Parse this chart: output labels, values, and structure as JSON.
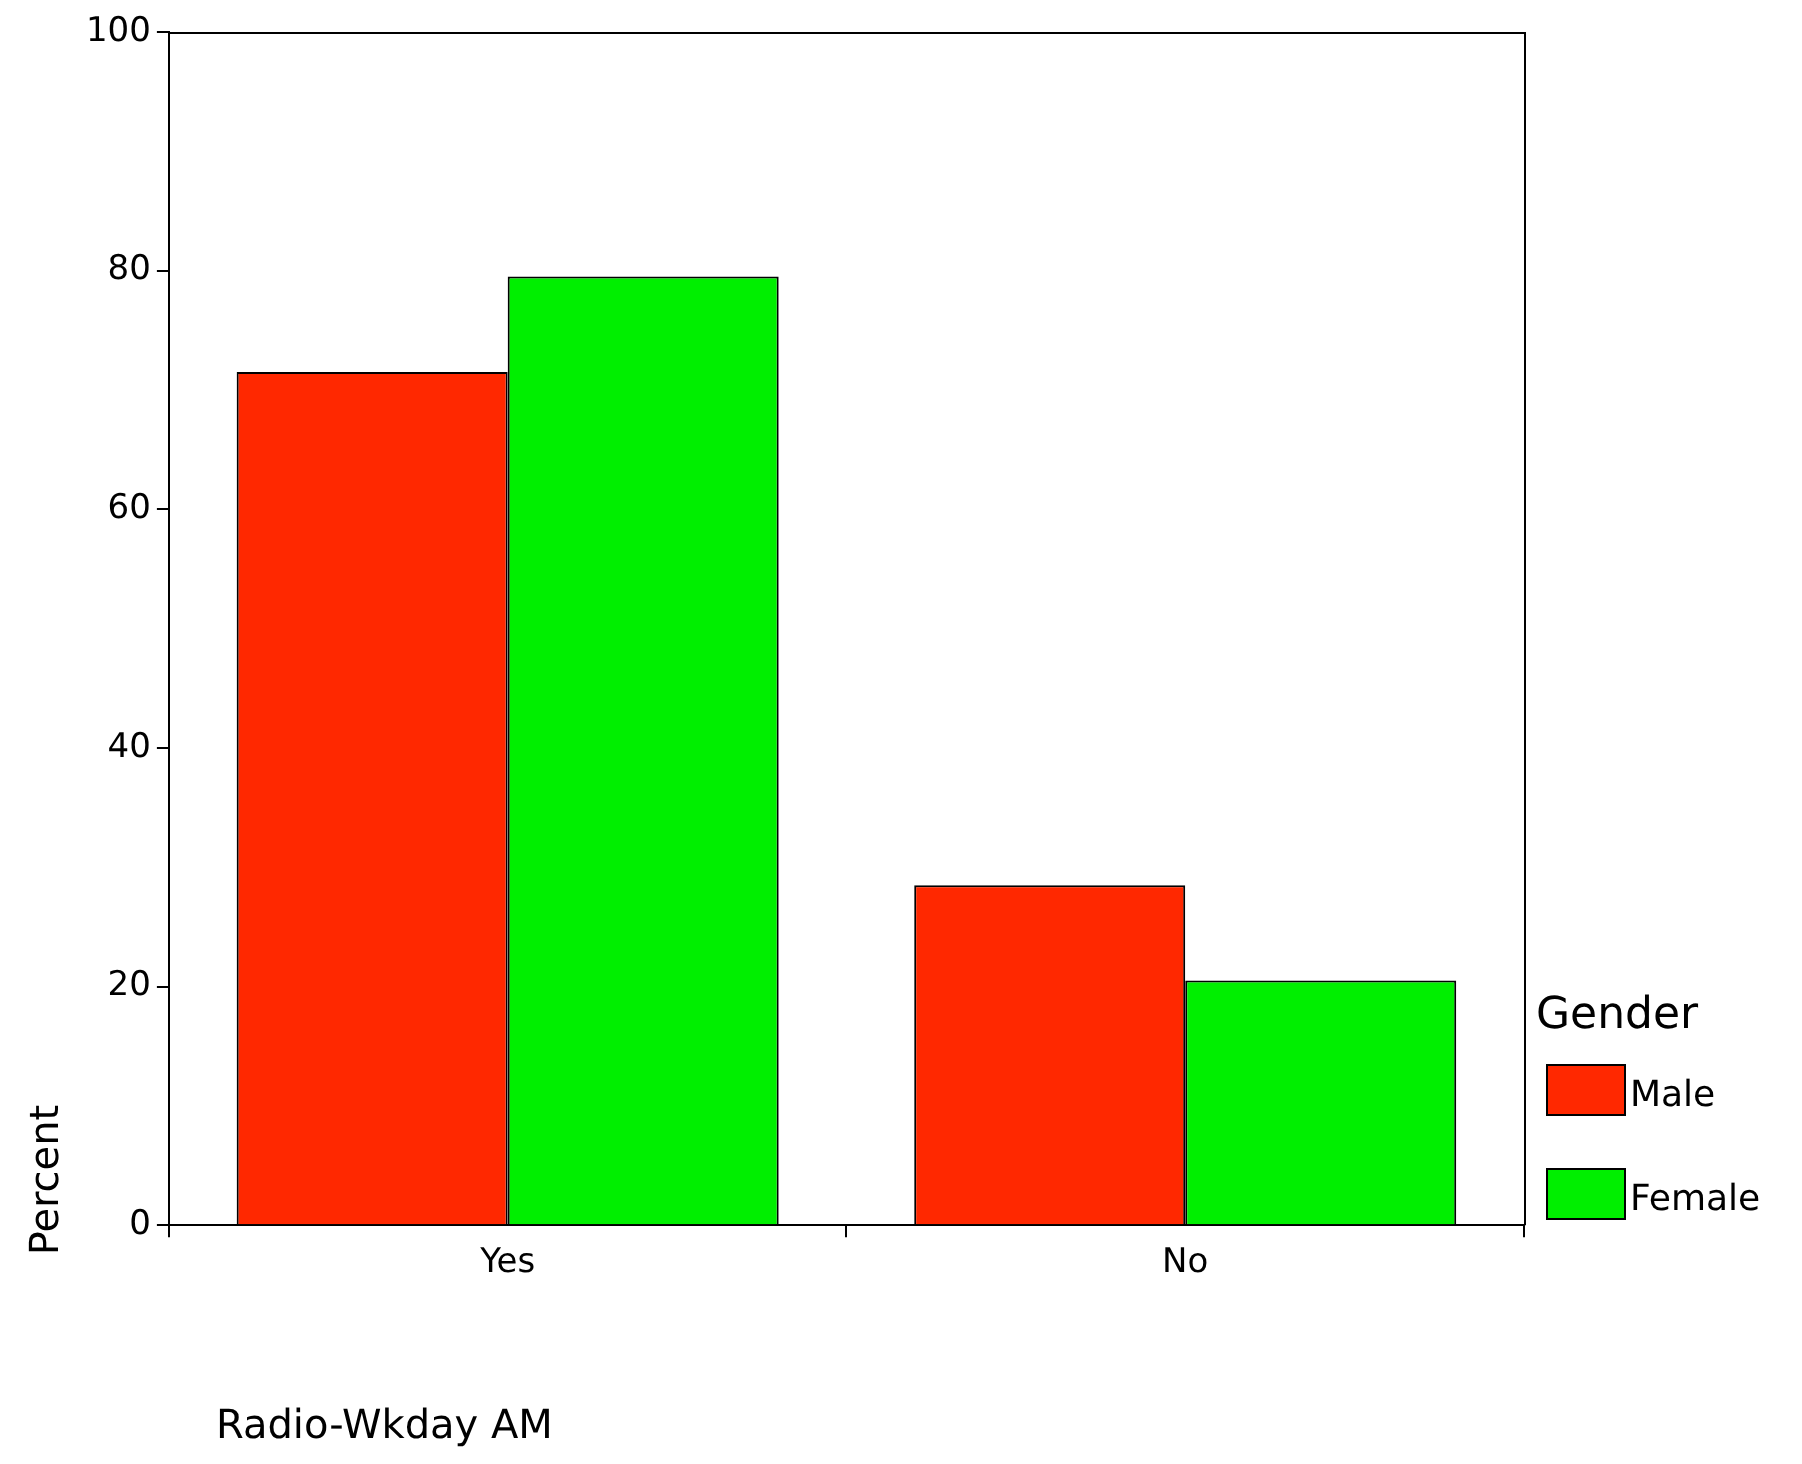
{
  "chart_data": {
    "type": "bar",
    "xlabel": "Radio-Wkday AM",
    "ylabel": "Percent",
    "legend_title": "Gender",
    "legend": "right",
    "categories": [
      "Yes",
      "No"
    ],
    "series": [
      {
        "name": "Male",
        "color": "#ff2800",
        "values": [
          71.5,
          28.5
        ]
      },
      {
        "name": "Female",
        "color": "#00ef00",
        "values": [
          79.5,
          20.5
        ]
      }
    ],
    "ylim": [
      0,
      100
    ],
    "yticks": [
      0,
      20,
      40,
      60,
      80,
      100
    ],
    "grid": false
  }
}
